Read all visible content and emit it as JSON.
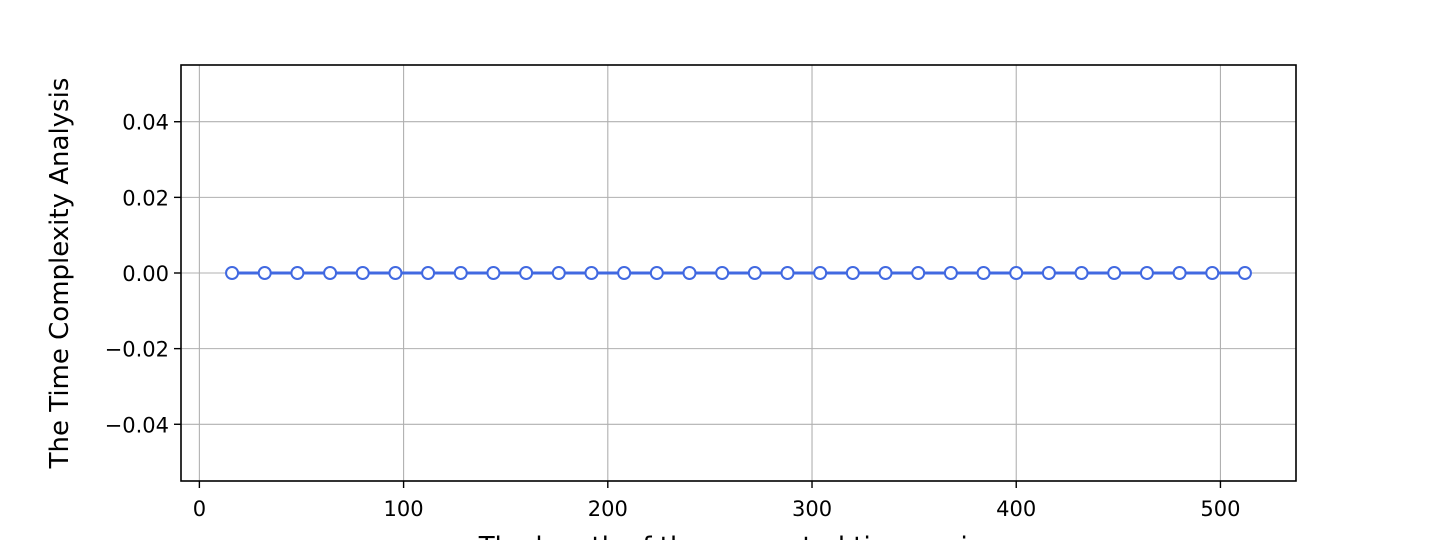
{
  "chart_data": {
    "type": "line",
    "title": "",
    "xlabel": "The length of the generated time series",
    "ylabel": "The Time Complexity Analysis",
    "xlim": [
      -9,
      537
    ],
    "ylim": [
      -0.055,
      0.055
    ],
    "x_ticks": [
      0,
      100,
      200,
      300,
      400,
      500
    ],
    "x_tick_labels": [
      "0",
      "100",
      "200",
      "300",
      "400",
      "500"
    ],
    "y_ticks": [
      0.04,
      0.02,
      0.0,
      -0.02,
      -0.04
    ],
    "y_tick_labels": [
      "0.04",
      "0.02",
      "0.00",
      "−0.02",
      "−0.04"
    ],
    "grid": true,
    "legend": "none",
    "line_color": "#4169E1",
    "marker": "open-circle",
    "series": [
      {
        "x": [
          16,
          32,
          48,
          64,
          80,
          96,
          112,
          128,
          144,
          160,
          176,
          192,
          208,
          224,
          240,
          256,
          272,
          288,
          304,
          320,
          336,
          352,
          368,
          384,
          400,
          416,
          432,
          448,
          464,
          480,
          496,
          512
        ],
        "y": [
          0,
          0,
          0,
          0,
          0,
          0,
          0,
          0,
          0,
          0,
          0,
          0,
          0,
          0,
          0,
          0,
          0,
          0,
          0,
          0,
          0,
          0,
          0,
          0,
          0,
          0,
          0,
          0,
          0,
          0,
          0,
          0
        ]
      }
    ]
  }
}
